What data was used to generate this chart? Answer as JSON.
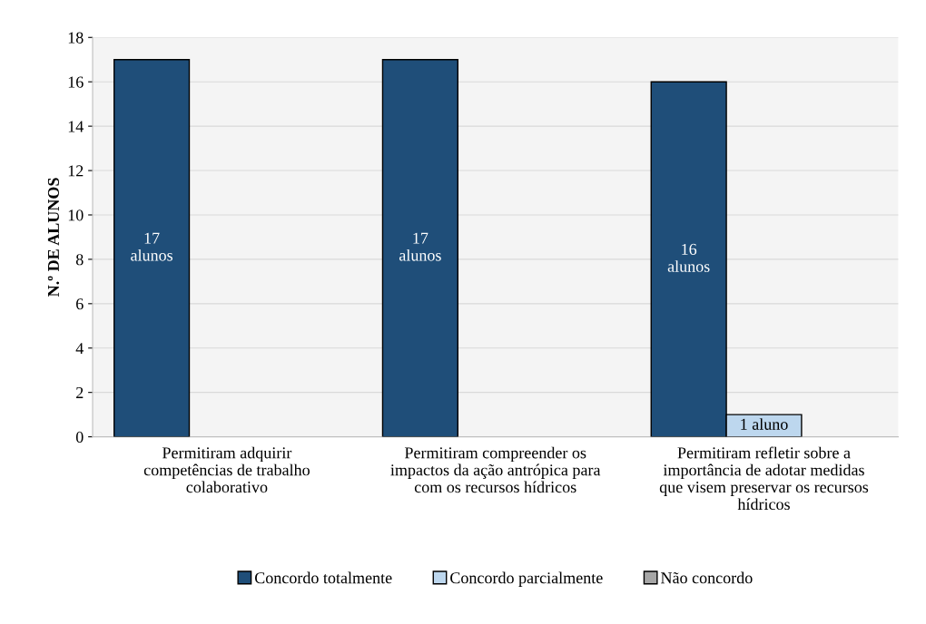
{
  "chart_data": {
    "type": "bar",
    "ylabel": "N.º DE ALUNOS",
    "categories": [
      "Permitiram adquirir\ncompetências de trabalho\ncolaborativo",
      "Permitiram compreender os\nimpactos da ação antrópica para\ncom os recursos hídricos",
      "Permitiram refletir sobre a\nimportância de adotar medidas\nque visem preservar os recursos\nhídricos"
    ],
    "series": [
      {
        "name": "Concordo totalmente",
        "color": "#1f4e79",
        "values": [
          17,
          17,
          16
        ],
        "value_labels": [
          "17\nalunos",
          "17\nalunos",
          "16\nalunos"
        ]
      },
      {
        "name": "Concordo parcialmente",
        "color": "#bdd7ee",
        "values": [
          null,
          null,
          1
        ],
        "value_labels": [
          null,
          null,
          "1 aluno"
        ]
      },
      {
        "name": "Não concordo",
        "color": "#a6a6a6",
        "values": [
          null,
          null,
          null
        ]
      }
    ],
    "ylim": [
      0,
      18
    ],
    "yticks": [
      0,
      2,
      4,
      6,
      8,
      10,
      12,
      14,
      16,
      18
    ],
    "grid": "y",
    "legend": "bottom"
  }
}
